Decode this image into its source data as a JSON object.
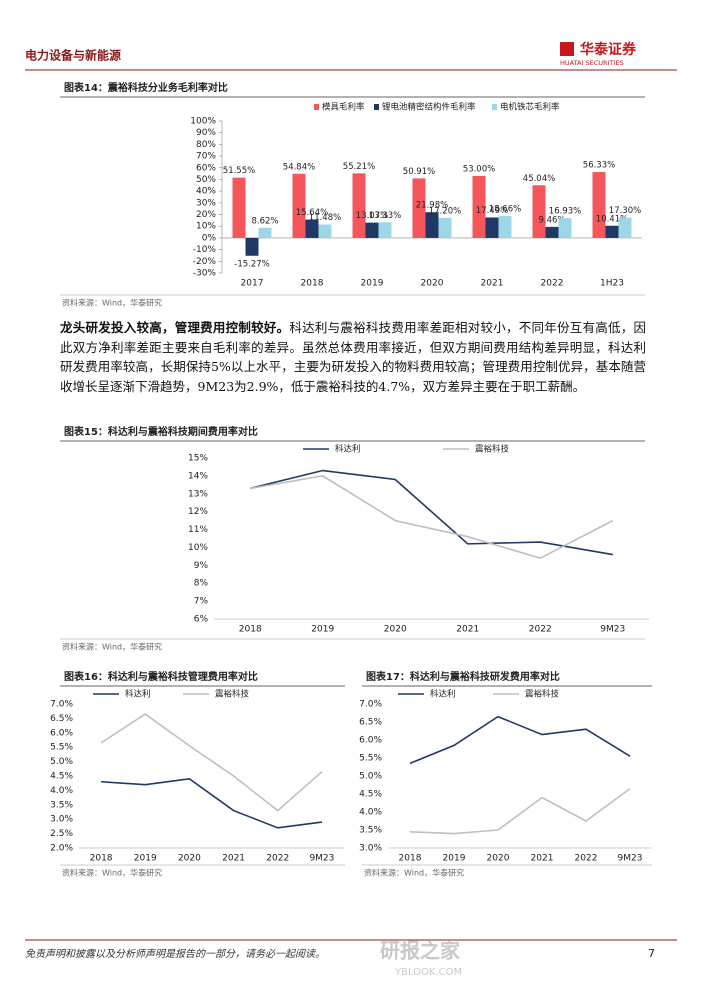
{
  "header": {
    "section": "电力设备与新能源",
    "logo_cn": "华泰证券",
    "logo_en": "HUATAI SECURITIES"
  },
  "paragraph": {
    "lead": "龙头研发投入较高，管理费用控制较好。",
    "body": "科达利与震裕科技费用率差距相对较小，不同年份互有高低，因此双方净利率差距主要来自毛利率的差异。虽然总体费用率接近，但双方期间费用结构差异明显，科达利研发费用率较高，长期保持5%以上水平，主要为研发投入的物料费用较高；管理费用控制优异，基本随营收增长呈逐渐下滑趋势，9M23为2.9%，低于震裕科技的4.7%，双方差异主要在于职工薪酬。"
  },
  "chart_data": [
    {
      "type": "bar",
      "title": "图表14：震裕科技分业务毛利率对比",
      "source": "资料来源：Wind，华泰研究",
      "categories": [
        "2017",
        "2018",
        "2019",
        "2020",
        "2021",
        "2022",
        "1H23"
      ],
      "series": [
        {
          "name": "模具毛利率",
          "color": "#f4565b",
          "values": [
            51.55,
            54.84,
            55.21,
            50.91,
            53.0,
            45.04,
            56.33
          ],
          "value_labels": [
            "51.55%",
            "54.84%",
            "55.21%",
            "50.91%",
            "53.00%",
            "45.04%",
            "56.33%"
          ]
        },
        {
          "name": "锂电池精密结构件毛利率",
          "color": "#1f3864",
          "values": [
            -15.27,
            15.64,
            13.07,
            21.98,
            17.49,
            9.46,
            10.41
          ],
          "value_labels": [
            "-15.27%",
            "15.64%",
            "13.07%",
            "21.98%",
            "17.49%",
            "9.46%",
            "10.41%"
          ]
        },
        {
          "name": "电机铁芯毛利率",
          "color": "#9dd6e6",
          "values": [
            8.62,
            11.48,
            13.33,
            17.2,
            18.66,
            16.93,
            17.3
          ],
          "value_labels": [
            "8.62%",
            "11.48%",
            "13.33%",
            "17.20%",
            "18.66%",
            "16.93%",
            "17.30%"
          ]
        }
      ],
      "ylim": [
        -30,
        100
      ],
      "yticks": [
        {
          "value": -30,
          "label": "-30%"
        },
        {
          "value": -20,
          "label": "-20%"
        },
        {
          "value": -10,
          "label": "-10%"
        },
        {
          "value": 0,
          "label": "0%"
        },
        {
          "value": 10,
          "label": "10%"
        },
        {
          "value": 20,
          "label": "20%"
        },
        {
          "value": 30,
          "label": "30%"
        },
        {
          "value": 40,
          "label": "40%"
        },
        {
          "value": 50,
          "label": "50%"
        },
        {
          "value": 60,
          "label": "60%"
        },
        {
          "value": 70,
          "label": "70%"
        },
        {
          "value": 80,
          "label": "80%"
        },
        {
          "value": 90,
          "label": "90%"
        },
        {
          "value": 100,
          "label": "100%"
        }
      ]
    },
    {
      "type": "line",
      "title": "图表15：科达利与震裕科技期间费用率对比",
      "source": "资料来源：Wind，华泰研究",
      "categories": [
        "2018",
        "2019",
        "2020",
        "2021",
        "2022",
        "9M23"
      ],
      "series": [
        {
          "name": "科达利",
          "color": "#1f3864",
          "values": [
            13.3,
            14.3,
            13.8,
            10.2,
            10.3,
            9.6
          ]
        },
        {
          "name": "震裕科技",
          "color": "#bfbfbf",
          "values": [
            13.3,
            14.0,
            11.5,
            10.6,
            9.4,
            11.5
          ]
        }
      ],
      "ylim": [
        6,
        15
      ],
      "yticks": [
        {
          "value": 6,
          "label": "6%"
        },
        {
          "value": 7,
          "label": "7%"
        },
        {
          "value": 8,
          "label": "8%"
        },
        {
          "value": 9,
          "label": "9%"
        },
        {
          "value": 10,
          "label": "10%"
        },
        {
          "value": 11,
          "label": "11%"
        },
        {
          "value": 12,
          "label": "12%"
        },
        {
          "value": 13,
          "label": "13%"
        },
        {
          "value": 14,
          "label": "14%"
        },
        {
          "value": 15,
          "label": "15%"
        }
      ]
    },
    {
      "type": "line",
      "title": "图表16：科达利与震裕科技管理费用率对比",
      "source": "资料来源：Wind，华泰研究",
      "categories": [
        "2018",
        "2019",
        "2020",
        "2021",
        "2022",
        "9M23"
      ],
      "series": [
        {
          "name": "科达利",
          "color": "#1f3864",
          "values": [
            4.3,
            4.2,
            4.4,
            3.3,
            2.7,
            2.9
          ]
        },
        {
          "name": "震裕科技",
          "color": "#bfbfbf",
          "values": [
            5.65,
            6.65,
            5.55,
            4.5,
            3.3,
            4.65
          ]
        }
      ],
      "ylim": [
        2,
        7
      ],
      "yticks": [
        {
          "value": 2,
          "label": "2.0%"
        },
        {
          "value": 2.5,
          "label": "2.5%"
        },
        {
          "value": 3,
          "label": "3.0%"
        },
        {
          "value": 3.5,
          "label": "3.5%"
        },
        {
          "value": 4,
          "label": "4.0%"
        },
        {
          "value": 4.5,
          "label": "4.5%"
        },
        {
          "value": 5,
          "label": "5.0%"
        },
        {
          "value": 5.5,
          "label": "5.5%"
        },
        {
          "value": 6,
          "label": "6.0%"
        },
        {
          "value": 6.5,
          "label": "6.5%"
        },
        {
          "value": 7,
          "label": "7.0%"
        }
      ]
    },
    {
      "type": "line",
      "title": "图表17：科达利与震裕科技研发费用率对比",
      "source": "资料来源：Wind，华泰研究",
      "categories": [
        "2018",
        "2019",
        "2020",
        "2021",
        "2022",
        "9M23"
      ],
      "series": [
        {
          "name": "科达利",
          "color": "#1f3864",
          "values": [
            5.35,
            5.85,
            6.65,
            6.15,
            6.3,
            5.55
          ]
        },
        {
          "name": "震裕科技",
          "color": "#bfbfbf",
          "values": [
            3.45,
            3.4,
            3.5,
            4.4,
            3.75,
            4.65
          ]
        }
      ],
      "ylim": [
        3,
        7
      ],
      "yticks": [
        {
          "value": 3,
          "label": "3.0%"
        },
        {
          "value": 3.5,
          "label": "3.5%"
        },
        {
          "value": 4,
          "label": "4.0%"
        },
        {
          "value": 4.5,
          "label": "4.5%"
        },
        {
          "value": 5,
          "label": "5.0%"
        },
        {
          "value": 5.5,
          "label": "5.5%"
        },
        {
          "value": 6,
          "label": "6.0%"
        },
        {
          "value": 6.5,
          "label": "6.5%"
        },
        {
          "value": 7,
          "label": "7.0%"
        }
      ]
    }
  ],
  "footer": {
    "disclaimer": "免责声明和披露以及分析师声明是报告的一部分，请务必一起阅读。",
    "page": 7
  },
  "watermark": {
    "cn": "研报之家",
    "en": "YBLOOK.COM"
  }
}
